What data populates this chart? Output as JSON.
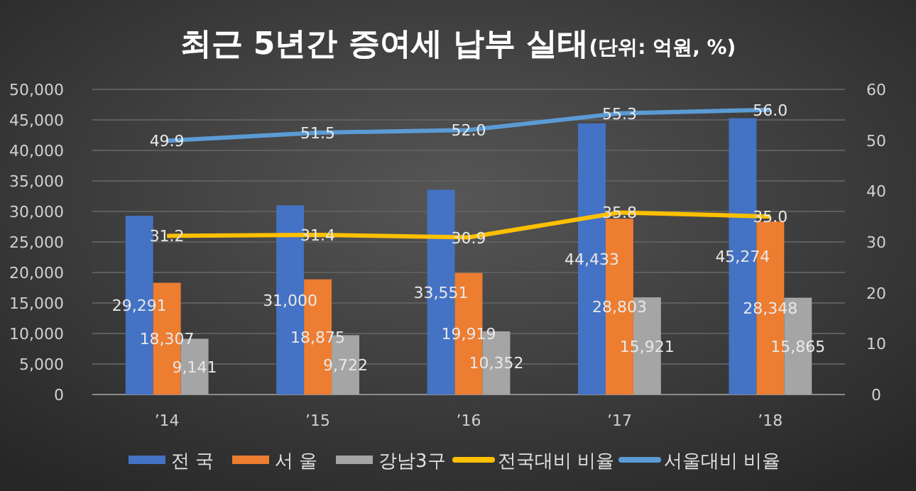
{
  "chart_data": {
    "type": "bar",
    "title": "최근 5년간 증여세 납부 실태",
    "subtitle": "(단위: 억원, %)",
    "categories": [
      "’14",
      "’15",
      "’16",
      "’17",
      "’18"
    ],
    "series": [
      {
        "name": "전 국",
        "color": "#4472c4",
        "values": [
          29291,
          31000,
          33551,
          44433,
          45274
        ],
        "value_labels": [
          "29,291",
          "31,000",
          "33,551",
          "44,433",
          "45,274"
        ]
      },
      {
        "name": "서 울",
        "color": "#ed7d31",
        "values": [
          18307,
          18875,
          19919,
          28803,
          28348
        ],
        "value_labels": [
          "18,307",
          "18,875",
          "19,919",
          "28,803",
          "28,348"
        ]
      },
      {
        "name": "강남3구",
        "color": "#a5a5a5",
        "values": [
          9141,
          9722,
          10352,
          15921,
          15865
        ],
        "value_labels": [
          "9,141",
          "9,722",
          "10,352",
          "15,921",
          "15,865"
        ]
      },
      {
        "name": "전국대비 비율",
        "type": "line",
        "axis": "y2",
        "color": "#ffc000",
        "values": [
          31.2,
          31.4,
          30.9,
          35.8,
          35.0
        ],
        "value_labels": [
          "31.2",
          "31.4",
          "30.9",
          "35.8",
          "35.0"
        ]
      },
      {
        "name": "서울대비 비율",
        "type": "line",
        "axis": "y2",
        "color": "#5b9bd5",
        "values": [
          49.9,
          51.5,
          52.0,
          55.3,
          56.0
        ],
        "value_labels": [
          "49.9",
          "51.5",
          "52.0",
          "55.3",
          "56.0"
        ]
      }
    ],
    "ylim": [
      0,
      50000
    ],
    "yticks": [
      {
        "value": 0,
        "label": "0"
      },
      {
        "value": 5000,
        "label": "5,000"
      },
      {
        "value": 10000,
        "label": "10,000"
      },
      {
        "value": 15000,
        "label": "15,000"
      },
      {
        "value": 20000,
        "label": "20,000"
      },
      {
        "value": 25000,
        "label": "25,000"
      },
      {
        "value": 30000,
        "label": "30,000"
      },
      {
        "value": 35000,
        "label": "35,000"
      },
      {
        "value": 40000,
        "label": "40,000"
      },
      {
        "value": 45000,
        "label": "45,000"
      },
      {
        "value": 50000,
        "label": "50,000"
      }
    ],
    "y2lim": [
      0,
      60
    ],
    "y2ticks": [
      0,
      10,
      20,
      30,
      40,
      50,
      60
    ],
    "grid": "y",
    "legend": "bottom",
    "marker": "none",
    "line_style": "solid"
  }
}
